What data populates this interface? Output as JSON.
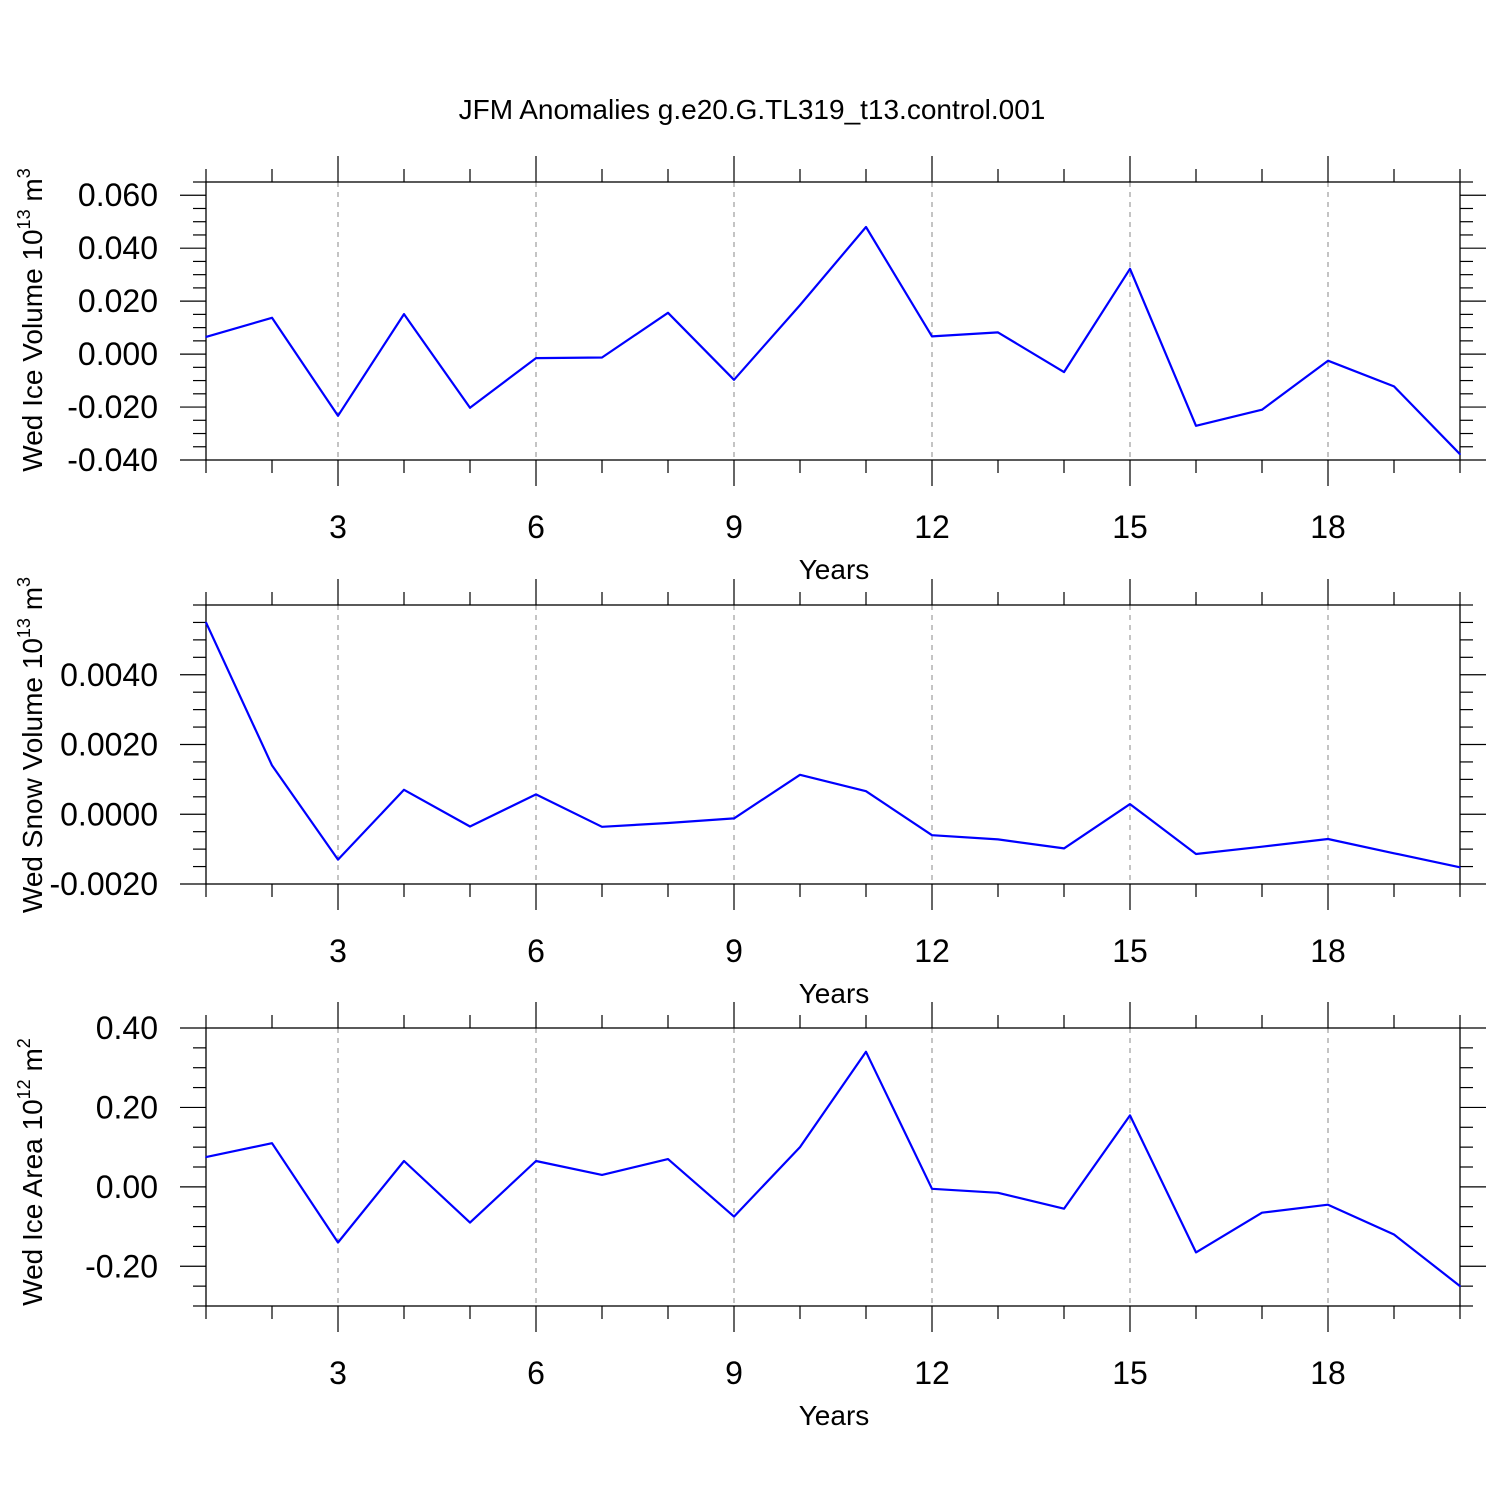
{
  "title": "JFM Anomalies g.e20.G.TL319_t13.control.001",
  "line_color": "#0000ff",
  "grid_color": "#888888",
  "chart_data": [
    {
      "type": "line",
      "ylabel": "Wed Ice Volume 10",
      "ylabel_exp": "13",
      "ylabel_unit": " m",
      "ylabel_unit_exp": "3",
      "xlabel": "Years",
      "xlim": [
        1,
        20
      ],
      "ylim": [
        -0.04,
        0.065
      ],
      "xticks": [
        3,
        6,
        9,
        12,
        15,
        18
      ],
      "xtick_labels": [
        "3",
        "6",
        "9",
        "12",
        "15",
        "18"
      ],
      "yticks": [
        -0.04,
        -0.02,
        0,
        0.02,
        0.04,
        0.06
      ],
      "ytick_labels": [
        "-0.040",
        "-0.020",
        "0.000",
        "0.020",
        "0.040",
        "0.060"
      ],
      "yminor_step": 0.005,
      "grid": "vertical dashed at major x ticks",
      "x": [
        1,
        2,
        3,
        4,
        5,
        6,
        7,
        8,
        9,
        10,
        11,
        12,
        13,
        14,
        15,
        16,
        17,
        18,
        19,
        20
      ],
      "y": [
        0.0065,
        0.0137,
        -0.0233,
        0.0151,
        -0.0203,
        -0.0015,
        -0.0013,
        0.0156,
        -0.0097,
        0.0185,
        0.048,
        0.0067,
        0.0082,
        -0.0068,
        0.0322,
        -0.0271,
        -0.021,
        -0.0025,
        -0.0122,
        -0.0378
      ]
    },
    {
      "type": "line",
      "ylabel": "Wed Snow Volume 10",
      "ylabel_exp": "13",
      "ylabel_unit": " m",
      "ylabel_unit_exp": "3",
      "xlabel": "Years",
      "xlim": [
        1,
        20
      ],
      "ylim": [
        -0.002,
        0.006
      ],
      "xticks": [
        3,
        6,
        9,
        12,
        15,
        18
      ],
      "xtick_labels": [
        "3",
        "6",
        "9",
        "12",
        "15",
        "18"
      ],
      "yticks": [
        -0.002,
        0,
        0.002,
        0.004
      ],
      "ytick_labels": [
        "-0.0020",
        "0.0000",
        "0.0020",
        "0.0040"
      ],
      "yminor_step": 0.0005,
      "grid": "vertical dashed at major x ticks",
      "x": [
        1,
        2,
        3,
        4,
        5,
        6,
        7,
        8,
        9,
        10,
        11,
        12,
        13,
        14,
        15,
        16,
        17,
        18,
        19,
        20
      ],
      "y": [
        0.0055,
        0.0014,
        -0.0013,
        0.0007,
        -0.00035,
        0.00057,
        -0.00036,
        -0.00025,
        -0.00012,
        0.00113,
        0.00066,
        -0.0006,
        -0.00072,
        -0.00098,
        0.00029,
        -0.00114,
        -0.00093,
        -0.00071,
        -0.00112,
        -0.00152
      ]
    },
    {
      "type": "line",
      "ylabel": "Wed Ice Area 10",
      "ylabel_exp": "12",
      "ylabel_unit": " m",
      "ylabel_unit_exp": "2",
      "xlabel": "Years",
      "xlim": [
        1,
        20
      ],
      "ylim": [
        -0.3,
        0.4
      ],
      "xticks": [
        3,
        6,
        9,
        12,
        15,
        18
      ],
      "xtick_labels": [
        "3",
        "6",
        "9",
        "12",
        "15",
        "18"
      ],
      "yticks": [
        -0.2,
        0,
        0.2,
        0.4
      ],
      "ytick_labels": [
        "-0.20",
        "0.00",
        "0.20",
        "0.40"
      ],
      "yminor_step": 0.05,
      "grid": "vertical dashed at major x ticks",
      "x": [
        1,
        2,
        3,
        4,
        5,
        6,
        7,
        8,
        9,
        10,
        11,
        12,
        13,
        14,
        15,
        16,
        17,
        18,
        19,
        20
      ],
      "y": [
        0.075,
        0.11,
        -0.14,
        0.065,
        -0.09,
        0.065,
        0.03,
        0.07,
        -0.075,
        0.1,
        0.34,
        -0.005,
        -0.015,
        -0.055,
        0.18,
        -0.165,
        -0.065,
        -0.045,
        -0.12,
        -0.25
      ]
    }
  ]
}
